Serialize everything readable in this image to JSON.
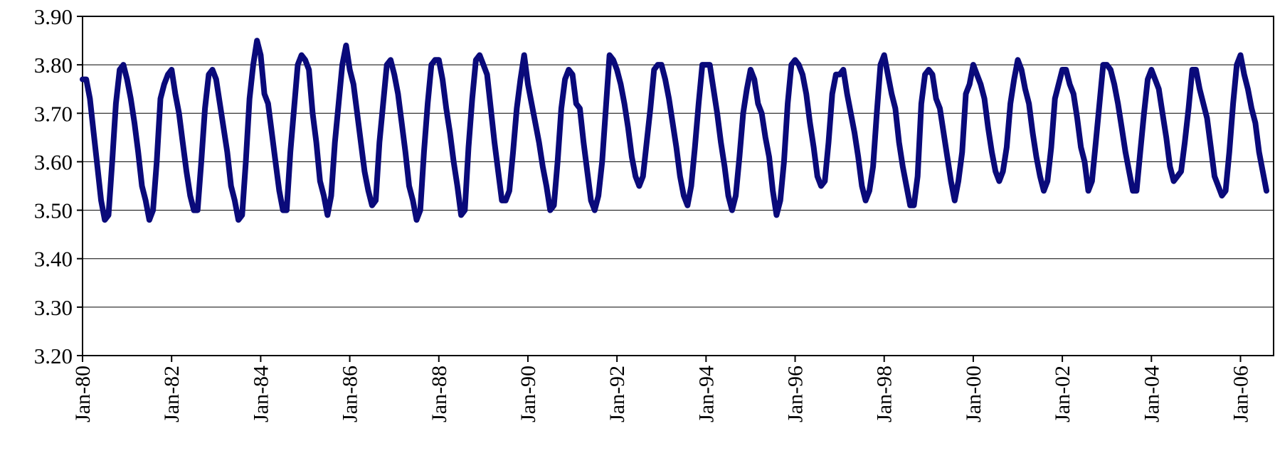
{
  "chart_data": {
    "type": "line",
    "title": "",
    "xlabel": "",
    "ylabel": "",
    "ylim": [
      3.2,
      3.9
    ],
    "y_ticks": [
      "3.20",
      "3.30",
      "3.40",
      "3.50",
      "3.60",
      "3.70",
      "3.80",
      "3.90"
    ],
    "x_tick_labels": [
      "Jan-80",
      "Jan-82",
      "Jan-84",
      "Jan-86",
      "Jan-88",
      "Jan-90",
      "Jan-92",
      "Jan-94",
      "Jan-96",
      "Jan-98",
      "Jan-00",
      "Jan-02",
      "Jan-04",
      "Jan-06"
    ],
    "x_start": "Jan-80",
    "x_end": "Jul-06",
    "grid": "horizontal",
    "legend": "none",
    "series": [
      {
        "color": "#0a0a7a",
        "values": [
          3.77,
          3.77,
          3.73,
          3.66,
          3.59,
          3.52,
          3.48,
          3.49,
          3.6,
          3.72,
          3.79,
          3.8,
          3.77,
          3.73,
          3.68,
          3.62,
          3.55,
          3.52,
          3.48,
          3.5,
          3.6,
          3.73,
          3.76,
          3.78,
          3.79,
          3.74,
          3.7,
          3.64,
          3.58,
          3.53,
          3.5,
          3.5,
          3.6,
          3.71,
          3.78,
          3.79,
          3.77,
          3.72,
          3.67,
          3.62,
          3.55,
          3.52,
          3.48,
          3.49,
          3.6,
          3.73,
          3.8,
          3.85,
          3.82,
          3.74,
          3.72,
          3.66,
          3.6,
          3.54,
          3.5,
          3.5,
          3.62,
          3.71,
          3.8,
          3.82,
          3.81,
          3.79,
          3.7,
          3.64,
          3.56,
          3.53,
          3.49,
          3.53,
          3.64,
          3.72,
          3.8,
          3.84,
          3.79,
          3.76,
          3.7,
          3.64,
          3.58,
          3.54,
          3.51,
          3.52,
          3.64,
          3.72,
          3.8,
          3.81,
          3.78,
          3.74,
          3.68,
          3.62,
          3.55,
          3.52,
          3.48,
          3.5,
          3.62,
          3.72,
          3.8,
          3.81,
          3.81,
          3.77,
          3.71,
          3.66,
          3.6,
          3.55,
          3.49,
          3.5,
          3.63,
          3.73,
          3.81,
          3.82,
          3.8,
          3.78,
          3.71,
          3.64,
          3.58,
          3.52,
          3.52,
          3.54,
          3.62,
          3.71,
          3.77,
          3.82,
          3.76,
          3.72,
          3.68,
          3.64,
          3.59,
          3.55,
          3.5,
          3.51,
          3.6,
          3.71,
          3.77,
          3.79,
          3.78,
          3.72,
          3.71,
          3.64,
          3.58,
          3.52,
          3.5,
          3.53,
          3.6,
          3.71,
          3.82,
          3.81,
          3.79,
          3.76,
          3.72,
          3.67,
          3.61,
          3.57,
          3.55,
          3.57,
          3.64,
          3.71,
          3.79,
          3.8,
          3.8,
          3.77,
          3.73,
          3.68,
          3.63,
          3.57,
          3.53,
          3.51,
          3.55,
          3.63,
          3.72,
          3.8,
          3.8,
          3.8,
          3.75,
          3.7,
          3.64,
          3.59,
          3.53,
          3.5,
          3.53,
          3.61,
          3.7,
          3.75,
          3.79,
          3.77,
          3.72,
          3.7,
          3.65,
          3.61,
          3.54,
          3.49,
          3.52,
          3.6,
          3.72,
          3.8,
          3.81,
          3.8,
          3.78,
          3.74,
          3.68,
          3.63,
          3.57,
          3.55,
          3.56,
          3.64,
          3.74,
          3.78,
          3.78,
          3.79,
          3.74,
          3.7,
          3.66,
          3.61,
          3.55,
          3.52,
          3.54,
          3.59,
          3.7,
          3.8,
          3.82,
          3.78,
          3.74,
          3.71,
          3.64,
          3.59,
          3.55,
          3.51,
          3.51,
          3.57,
          3.72,
          3.78,
          3.79,
          3.78,
          3.73,
          3.71,
          3.66,
          3.61,
          3.56,
          3.52,
          3.56,
          3.62,
          3.74,
          3.76,
          3.8,
          3.78,
          3.76,
          3.73,
          3.67,
          3.62,
          3.58,
          3.56,
          3.58,
          3.63,
          3.72,
          3.77,
          3.81,
          3.79,
          3.75,
          3.72,
          3.66,
          3.61,
          3.57,
          3.54,
          3.56,
          3.63,
          3.73,
          3.76,
          3.79,
          3.79,
          3.76,
          3.74,
          3.69,
          3.63,
          3.6,
          3.54,
          3.56,
          3.64,
          3.72,
          3.8,
          3.8,
          3.79,
          3.76,
          3.72,
          3.67,
          3.62,
          3.58,
          3.54,
          3.54,
          3.62,
          3.7,
          3.77,
          3.79,
          3.77,
          3.75,
          3.7,
          3.65,
          3.59,
          3.56,
          3.57,
          3.58,
          3.64,
          3.71,
          3.79,
          3.79,
          3.75,
          3.72,
          3.69,
          3.63,
          3.57,
          3.55,
          3.53,
          3.54,
          3.62,
          3.72,
          3.8,
          3.82,
          3.78,
          3.75,
          3.71,
          3.68,
          3.62,
          3.58,
          3.54
        ]
      }
    ]
  }
}
